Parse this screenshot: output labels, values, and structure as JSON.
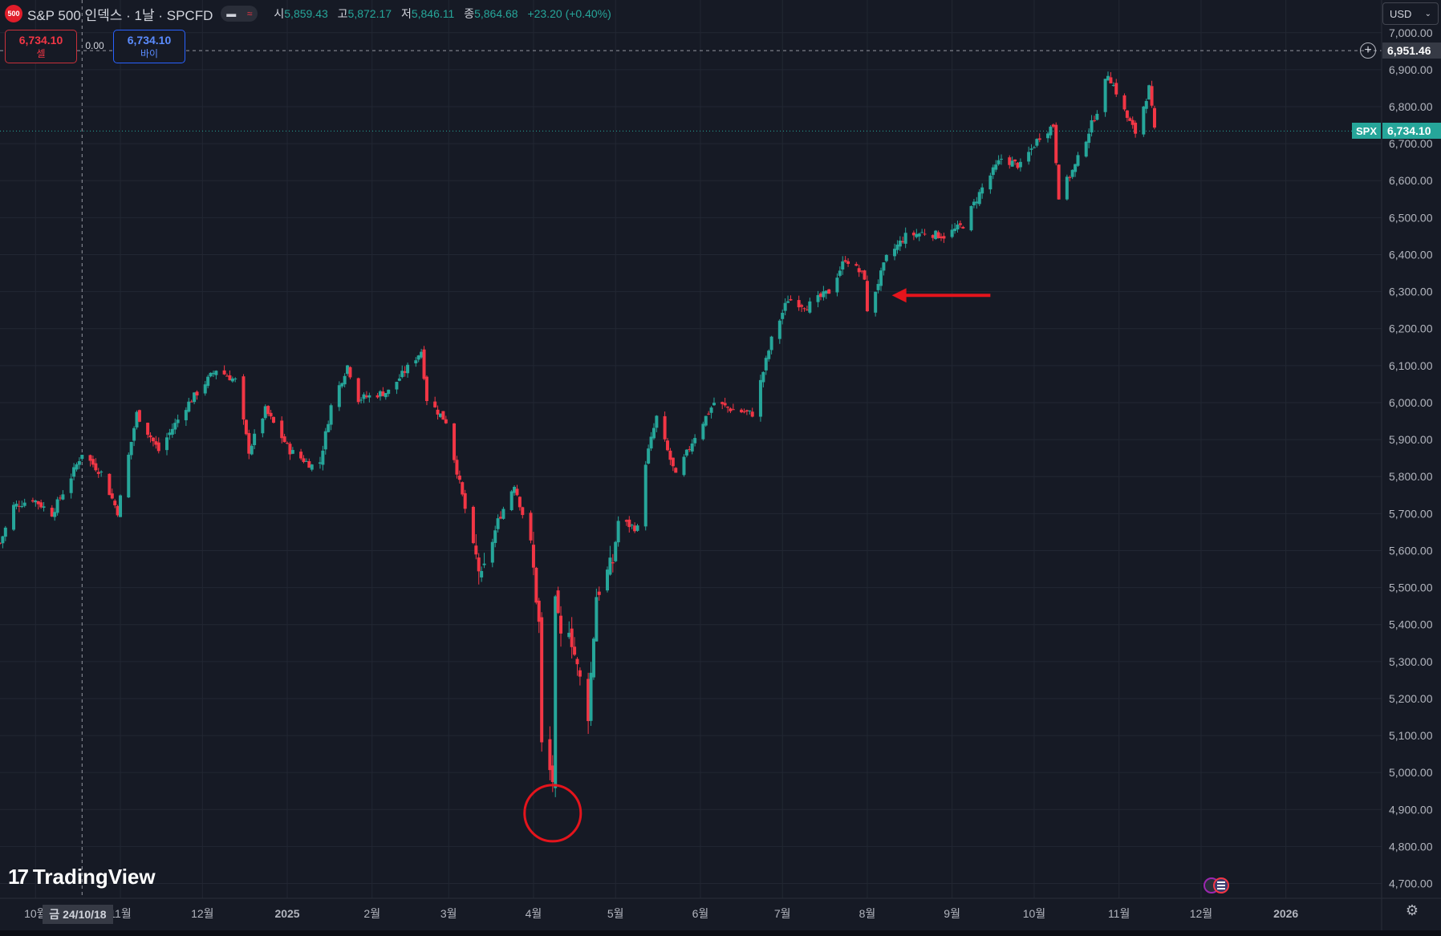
{
  "header": {
    "symbol_badge": "500",
    "title": "S&P 500 인덱스 · 1날 · SPCFD",
    "pill_icons": [
      "minus-icon",
      "wave-icon"
    ],
    "ohlc": [
      {
        "key": "시",
        "value": "5,859.43"
      },
      {
        "key": "고",
        "value": "5,872.17"
      },
      {
        "key": "저",
        "value": "5,846.11"
      },
      {
        "key": "종",
        "value": "5,864.68"
      }
    ],
    "change": "+23.20 (+0.40%)",
    "colors": {
      "up": "#26a69a",
      "down": "#f23645",
      "background": "#161a25"
    }
  },
  "trade": {
    "sell_price": "6,734.10",
    "sell_label": "셀",
    "spread": "0.00",
    "buy_price": "6,734.10",
    "buy_label": "바이"
  },
  "currency": {
    "label": "USD",
    "icon": "chevron-down-icon"
  },
  "price_tags": {
    "cursor_price": "6,951.46",
    "symbol": "SPX",
    "last_price": "6,734.10"
  },
  "crosshair_date": "금 24/10/18",
  "brand": "TradingView",
  "chart_data": {
    "type": "candlestick",
    "title": "",
    "y_ticks": [
      "7,000.00",
      "6,900.00",
      "6,800.00",
      "6,700.00",
      "6,600.00",
      "6,500.00",
      "6,400.00",
      "6,300.00",
      "6,200.00",
      "6,100.00",
      "6,000.00",
      "5,900.00",
      "5,800.00",
      "5,700.00",
      "5,600.00",
      "5,500.00",
      "5,400.00",
      "5,300.00",
      "5,200.00",
      "5,100.00",
      "5,000.00",
      "4,900.00",
      "4,800.00",
      "4,700.00"
    ],
    "y_values": [
      7000,
      6900,
      6800,
      6700,
      6600,
      6500,
      6400,
      6300,
      6200,
      6100,
      6000,
      5900,
      5800,
      5700,
      5600,
      5500,
      5400,
      5300,
      5200,
      5100,
      5000,
      4900,
      4800,
      4700
    ],
    "ylim": [
      4660,
      7045
    ],
    "x_ticks": [
      "10월",
      "11월",
      "12월",
      "2025",
      "2월",
      "3월",
      "4월",
      "5월",
      "6월",
      "7월",
      "8월",
      "9월",
      "10월",
      "11월",
      "12월",
      "2026"
    ],
    "x_tick_dates": [
      "2024-10-01",
      "2024-11-01",
      "2024-12-01",
      "2025-01-01",
      "2025-02-01",
      "2025-03-01",
      "2025-04-01",
      "2025-05-01",
      "2025-06-01",
      "2025-07-01",
      "2025-08-01",
      "2025-09-01",
      "2025-10-01",
      "2025-11-01",
      "2025-12-01",
      "2026-01-01"
    ],
    "xlim": [
      "2024-09-18",
      "2026-02-05"
    ],
    "close_series": [
      [
        "2024-09-18",
        5620
      ],
      [
        "2024-09-23",
        5720
      ],
      [
        "2024-09-30",
        5740
      ],
      [
        "2024-10-07",
        5700
      ],
      [
        "2024-10-14",
        5800
      ],
      [
        "2024-10-18",
        5864
      ],
      [
        "2024-10-25",
        5810
      ],
      [
        "2024-10-31",
        5705
      ],
      [
        "2024-11-07",
        5970
      ],
      [
        "2024-11-15",
        5870
      ],
      [
        "2024-11-25",
        5990
      ],
      [
        "2024-12-06",
        6090
      ],
      [
        "2024-12-13",
        6060
      ],
      [
        "2024-12-18",
        5870
      ],
      [
        "2024-12-24",
        5980
      ],
      [
        "2025-01-02",
        5870
      ],
      [
        "2025-01-10",
        5830
      ],
      [
        "2025-01-13",
        5840
      ],
      [
        "2025-01-17",
        5990
      ],
      [
        "2025-01-23",
        6100
      ],
      [
        "2025-01-27",
        6010
      ],
      [
        "2025-02-07",
        6030
      ],
      [
        "2025-02-19",
        6140
      ],
      [
        "2025-02-21",
        6010
      ],
      [
        "2025-02-28",
        5950
      ],
      [
        "2025-03-03",
        5850
      ],
      [
        "2025-03-10",
        5610
      ],
      [
        "2025-03-13",
        5520
      ],
      [
        "2025-03-19",
        5680
      ],
      [
        "2025-03-25",
        5780
      ],
      [
        "2025-03-31",
        5620
      ],
      [
        "2025-04-03",
        5400
      ],
      [
        "2025-04-04",
        5070
      ],
      [
        "2025-04-08",
        4980
      ],
      [
        "2025-04-09",
        5450
      ],
      [
        "2025-04-11",
        5360
      ],
      [
        "2025-04-14",
        5400
      ],
      [
        "2025-04-17",
        5280
      ],
      [
        "2025-04-21",
        5160
      ],
      [
        "2025-04-24",
        5480
      ],
      [
        "2025-04-30",
        5570
      ],
      [
        "2025-05-02",
        5680
      ],
      [
        "2025-05-09",
        5660
      ],
      [
        "2025-05-12",
        5840
      ],
      [
        "2025-05-16",
        5960
      ],
      [
        "2025-05-23",
        5800
      ],
      [
        "2025-05-30",
        5910
      ],
      [
        "2025-06-06",
        6000
      ],
      [
        "2025-06-13",
        5980
      ],
      [
        "2025-06-20",
        5970
      ],
      [
        "2025-06-27",
        6170
      ],
      [
        "2025-07-03",
        6280
      ],
      [
        "2025-07-10",
        6260
      ],
      [
        "2025-07-18",
        6300
      ],
      [
        "2025-07-24",
        6390
      ],
      [
        "2025-07-31",
        6340
      ],
      [
        "2025-08-01",
        6240
      ],
      [
        "2025-08-08",
        6390
      ],
      [
        "2025-08-15",
        6450
      ],
      [
        "2025-08-22",
        6460
      ],
      [
        "2025-08-29",
        6450
      ],
      [
        "2025-09-05",
        6480
      ],
      [
        "2025-09-12",
        6580
      ],
      [
        "2025-09-19",
        6660
      ],
      [
        "2025-09-26",
        6640
      ],
      [
        "2025-10-03",
        6720
      ],
      [
        "2025-10-08",
        6750
      ],
      [
        "2025-10-10",
        6560
      ],
      [
        "2025-10-16",
        6640
      ],
      [
        "2025-10-24",
        6790
      ],
      [
        "2025-10-28",
        6890
      ],
      [
        "2025-10-31",
        6840
      ],
      [
        "2025-11-04",
        6770
      ],
      [
        "2025-11-07",
        6730
      ],
      [
        "2025-11-12",
        6850
      ],
      [
        "2025-11-14",
        6734
      ]
    ]
  },
  "annotations": {
    "circle_label": "red-circle-annotation",
    "arrow_label": "red-arrow-annotation"
  }
}
